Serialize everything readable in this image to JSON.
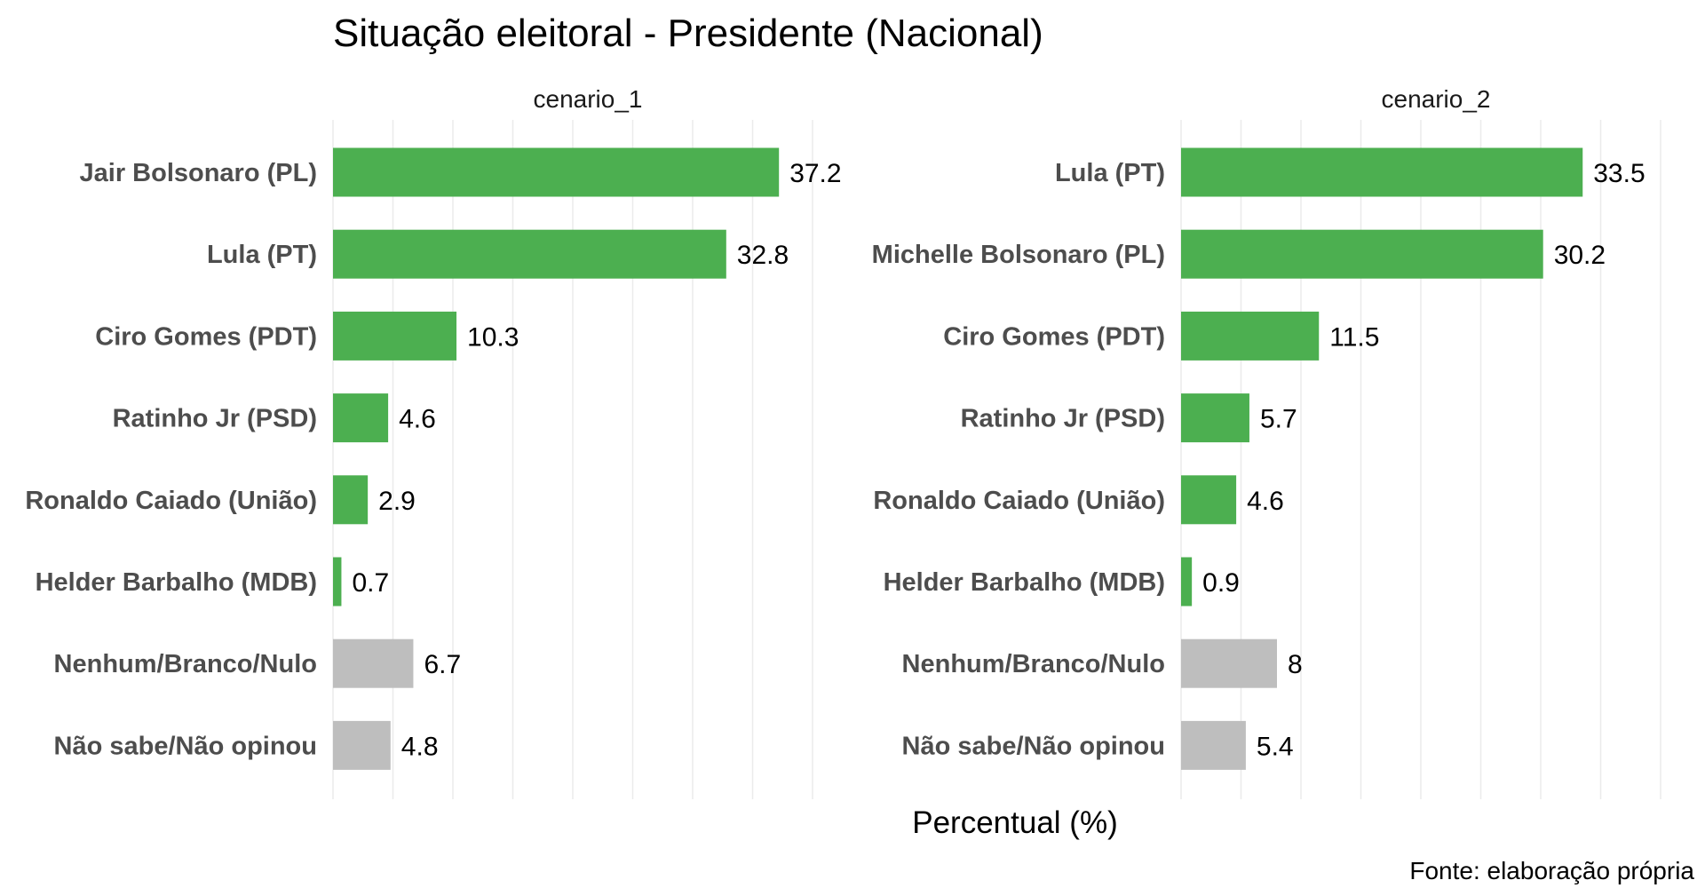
{
  "chart_data": {
    "type": "bar",
    "orientation": "horizontal",
    "title": "Situação eleitoral - Presidente (Nacional)",
    "xlabel": "Percentual (%)",
    "ylabel": "",
    "caption": "Fonte: elaboração própria",
    "xlim": [
      0,
      40
    ],
    "grid": true,
    "legend": "none",
    "colors": {
      "candidate": "#4caf50",
      "other": "#bebebe"
    },
    "panels": [
      {
        "name": "cenario_1",
        "categories": [
          "Jair Bolsonaro (PL)",
          "Lula (PT)",
          "Ciro Gomes (PDT)",
          "Ratinho Jr (PSD)",
          "Ronaldo Caiado (União)",
          "Helder Barbalho (MDB)",
          "Nenhum/Branco/Nulo",
          "Não sabe/Não opinou"
        ],
        "values": [
          37.2,
          32.8,
          10.3,
          4.6,
          2.9,
          0.7,
          6.7,
          4.8
        ],
        "labels": [
          "37.2",
          "32.8",
          "10.3",
          "4.6",
          "2.9",
          "0.7",
          "6.7",
          "4.8"
        ],
        "groups": [
          "candidate",
          "candidate",
          "candidate",
          "candidate",
          "candidate",
          "candidate",
          "other",
          "other"
        ]
      },
      {
        "name": "cenario_2",
        "categories": [
          "Lula (PT)",
          "Michelle Bolsonaro (PL)",
          "Ciro Gomes (PDT)",
          "Ratinho Jr (PSD)",
          "Ronaldo Caiado (União)",
          "Helder Barbalho (MDB)",
          "Nenhum/Branco/Nulo",
          "Não sabe/Não opinou"
        ],
        "values": [
          33.5,
          30.2,
          11.5,
          5.7,
          4.6,
          0.9,
          8,
          5.4
        ],
        "labels": [
          "33.5",
          "30.2",
          "11.5",
          "5.7",
          "4.6",
          "0.9",
          "8",
          "5.4"
        ],
        "groups": [
          "candidate",
          "candidate",
          "candidate",
          "candidate",
          "candidate",
          "candidate",
          "other",
          "other"
        ]
      }
    ]
  }
}
